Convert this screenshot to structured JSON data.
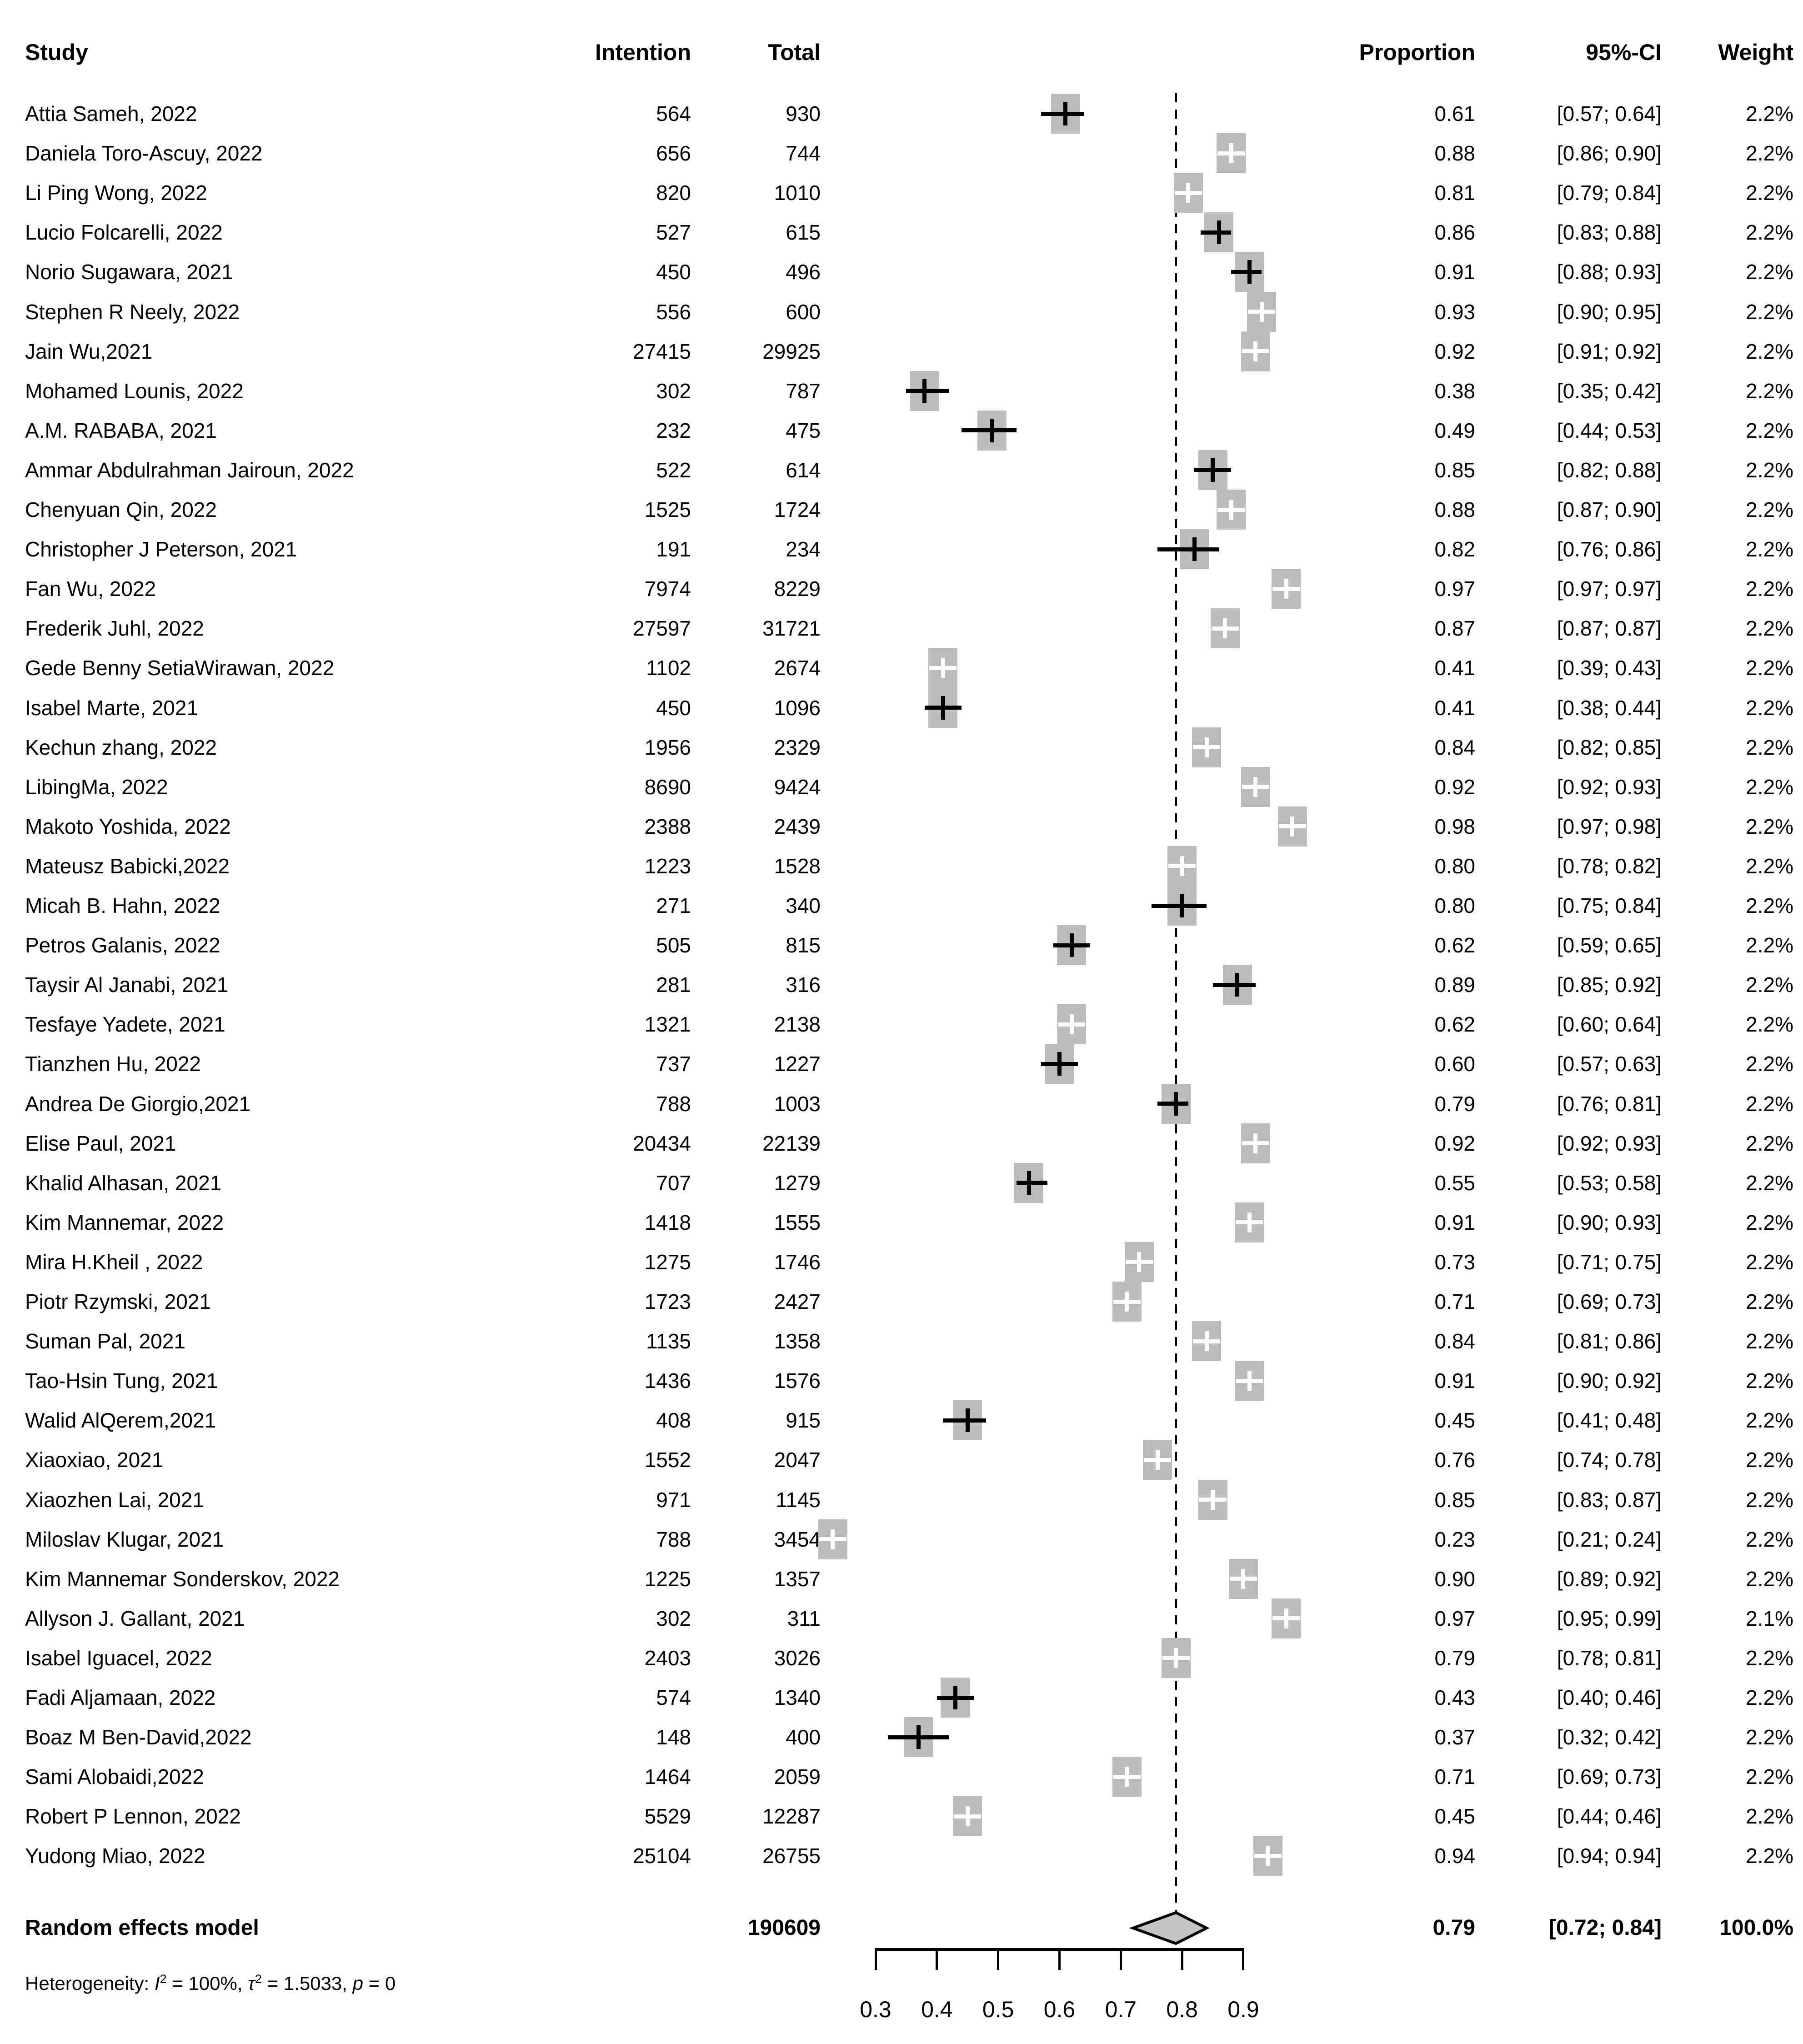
{
  "header": {
    "study": "Study",
    "intention": "Intention",
    "total": "Total",
    "proportion": "Proportion",
    "ci": "95%-CI",
    "weight": "Weight"
  },
  "colors": {
    "square": "#bcbcbc",
    "diamond_fill": "#c4c4c4",
    "diamond_border": "#000000",
    "text": "#000000"
  },
  "chart_data": {
    "type": "forest",
    "xlabel": "",
    "axis": {
      "ticks": [
        "0.3",
        "0.4",
        "0.5",
        "0.6",
        "0.7",
        "0.8",
        "0.9"
      ],
      "tick_values": [
        0.3,
        0.4,
        0.5,
        0.6,
        0.7,
        0.8,
        0.9
      ],
      "xmin": 0.3,
      "xmax": 0.9,
      "dashed_line_x": 0.79,
      "grid": false
    },
    "studies": [
      {
        "name": "Attia Sameh, 2022",
        "intention": "564",
        "total": "930",
        "prop": 0.61,
        "lo": 0.57,
        "hi": 0.64,
        "prop_label": "0.61",
        "ci_label": "[0.57; 0.64]",
        "weight": "2.2%",
        "marker": "black"
      },
      {
        "name": "Daniela Toro-Ascuy, 2022",
        "intention": "656",
        "total": "744",
        "prop": 0.88,
        "lo": 0.86,
        "hi": 0.9,
        "prop_label": "0.88",
        "ci_label": "[0.86; 0.90]",
        "weight": "2.2%",
        "marker": "white"
      },
      {
        "name": "Li Ping Wong, 2022",
        "intention": "820",
        "total": "1010",
        "prop": 0.81,
        "lo": 0.79,
        "hi": 0.84,
        "prop_label": "0.81",
        "ci_label": "[0.79; 0.84]",
        "weight": "2.2%",
        "marker": "white"
      },
      {
        "name": "Lucio Folcarelli, 2022",
        "intention": "527",
        "total": "615",
        "prop": 0.86,
        "lo": 0.83,
        "hi": 0.88,
        "prop_label": "0.86",
        "ci_label": "[0.83; 0.88]",
        "weight": "2.2%",
        "marker": "black"
      },
      {
        "name": "Norio Sugawara, 2021",
        "intention": "450",
        "total": "496",
        "prop": 0.91,
        "lo": 0.88,
        "hi": 0.93,
        "prop_label": "0.91",
        "ci_label": "[0.88; 0.93]",
        "weight": "2.2%",
        "marker": "black"
      },
      {
        "name": "Stephen R Neely, 2022",
        "intention": "556",
        "total": "600",
        "prop": 0.93,
        "lo": 0.9,
        "hi": 0.95,
        "prop_label": "0.93",
        "ci_label": "[0.90; 0.95]",
        "weight": "2.2%",
        "marker": "white"
      },
      {
        "name": "Jain Wu,2021",
        "intention": "27415",
        "total": "29925",
        "prop": 0.92,
        "lo": 0.91,
        "hi": 0.92,
        "prop_label": "0.92",
        "ci_label": "[0.91; 0.92]",
        "weight": "2.2%",
        "marker": "white"
      },
      {
        "name": "Mohamed Lounis, 2022",
        "intention": "302",
        "total": "787",
        "prop": 0.38,
        "lo": 0.35,
        "hi": 0.42,
        "prop_label": "0.38",
        "ci_label": "[0.35; 0.42]",
        "weight": "2.2%",
        "marker": "black"
      },
      {
        "name": "A.M. RABABA, 2021",
        "intention": "232",
        "total": "475",
        "prop": 0.49,
        "lo": 0.44,
        "hi": 0.53,
        "prop_label": "0.49",
        "ci_label": "[0.44; 0.53]",
        "weight": "2.2%",
        "marker": "black"
      },
      {
        "name": "Ammar Abdulrahman Jairoun, 2022",
        "intention": "522",
        "total": "614",
        "prop": 0.85,
        "lo": 0.82,
        "hi": 0.88,
        "prop_label": "0.85",
        "ci_label": "[0.82; 0.88]",
        "weight": "2.2%",
        "marker": "black"
      },
      {
        "name": "Chenyuan Qin, 2022",
        "intention": "1525",
        "total": "1724",
        "prop": 0.88,
        "lo": 0.87,
        "hi": 0.9,
        "prop_label": "0.88",
        "ci_label": "[0.87; 0.90]",
        "weight": "2.2%",
        "marker": "white"
      },
      {
        "name": "Christopher J Peterson, 2021",
        "intention": "191",
        "total": "234",
        "prop": 0.82,
        "lo": 0.76,
        "hi": 0.86,
        "prop_label": "0.82",
        "ci_label": "[0.76; 0.86]",
        "weight": "2.2%",
        "marker": "black"
      },
      {
        "name": "Fan Wu, 2022",
        "intention": "7974",
        "total": "8229",
        "prop": 0.97,
        "lo": 0.97,
        "hi": 0.97,
        "prop_label": "0.97",
        "ci_label": "[0.97; 0.97]",
        "weight": "2.2%",
        "marker": "white"
      },
      {
        "name": "Frederik Juhl, 2022",
        "intention": "27597",
        "total": "31721",
        "prop": 0.87,
        "lo": 0.87,
        "hi": 0.87,
        "prop_label": "0.87",
        "ci_label": "[0.87; 0.87]",
        "weight": "2.2%",
        "marker": "white"
      },
      {
        "name": "Gede Benny SetiaWirawan, 2022",
        "intention": "1102",
        "total": "2674",
        "prop": 0.41,
        "lo": 0.39,
        "hi": 0.43,
        "prop_label": "0.41",
        "ci_label": "[0.39; 0.43]",
        "weight": "2.2%",
        "marker": "white"
      },
      {
        "name": "Isabel Marte, 2021",
        "intention": "450",
        "total": "1096",
        "prop": 0.41,
        "lo": 0.38,
        "hi": 0.44,
        "prop_label": "0.41",
        "ci_label": "[0.38; 0.44]",
        "weight": "2.2%",
        "marker": "black"
      },
      {
        "name": "Kechun zhang, 2022",
        "intention": "1956",
        "total": "2329",
        "prop": 0.84,
        "lo": 0.82,
        "hi": 0.85,
        "prop_label": "0.84",
        "ci_label": "[0.82; 0.85]",
        "weight": "2.2%",
        "marker": "white"
      },
      {
        "name": "LibingMa, 2022",
        "intention": "8690",
        "total": "9424",
        "prop": 0.92,
        "lo": 0.92,
        "hi": 0.93,
        "prop_label": "0.92",
        "ci_label": "[0.92; 0.93]",
        "weight": "2.2%",
        "marker": "white"
      },
      {
        "name": "Makoto Yoshida, 2022",
        "intention": "2388",
        "total": "2439",
        "prop": 0.98,
        "lo": 0.97,
        "hi": 0.98,
        "prop_label": "0.98",
        "ci_label": "[0.97; 0.98]",
        "weight": "2.2%",
        "marker": "white"
      },
      {
        "name": "Mateusz Babicki,2022",
        "intention": "1223",
        "total": "1528",
        "prop": 0.8,
        "lo": 0.78,
        "hi": 0.82,
        "prop_label": "0.80",
        "ci_label": "[0.78; 0.82]",
        "weight": "2.2%",
        "marker": "white"
      },
      {
        "name": "Micah B. Hahn, 2022",
        "intention": "271",
        "total": "340",
        "prop": 0.8,
        "lo": 0.75,
        "hi": 0.84,
        "prop_label": "0.80",
        "ci_label": "[0.75; 0.84]",
        "weight": "2.2%",
        "marker": "black"
      },
      {
        "name": "Petros Galanis, 2022",
        "intention": "505",
        "total": "815",
        "prop": 0.62,
        "lo": 0.59,
        "hi": 0.65,
        "prop_label": "0.62",
        "ci_label": "[0.59; 0.65]",
        "weight": "2.2%",
        "marker": "black"
      },
      {
        "name": "Taysir Al Janabi, 2021",
        "intention": "281",
        "total": "316",
        "prop": 0.89,
        "lo": 0.85,
        "hi": 0.92,
        "prop_label": "0.89",
        "ci_label": "[0.85; 0.92]",
        "weight": "2.2%",
        "marker": "black"
      },
      {
        "name": "Tesfaye Yadete, 2021",
        "intention": "1321",
        "total": "2138",
        "prop": 0.62,
        "lo": 0.6,
        "hi": 0.64,
        "prop_label": "0.62",
        "ci_label": "[0.60; 0.64]",
        "weight": "2.2%",
        "marker": "white"
      },
      {
        "name": "Tianzhen Hu, 2022",
        "intention": "737",
        "total": "1227",
        "prop": 0.6,
        "lo": 0.57,
        "hi": 0.63,
        "prop_label": "0.60",
        "ci_label": "[0.57; 0.63]",
        "weight": "2.2%",
        "marker": "black"
      },
      {
        "name": "Andrea De Giorgio,2021",
        "intention": "788",
        "total": "1003",
        "prop": 0.79,
        "lo": 0.76,
        "hi": 0.81,
        "prop_label": "0.79",
        "ci_label": "[0.76; 0.81]",
        "weight": "2.2%",
        "marker": "black"
      },
      {
        "name": "Elise Paul, 2021",
        "intention": "20434",
        "total": "22139",
        "prop": 0.92,
        "lo": 0.92,
        "hi": 0.93,
        "prop_label": "0.92",
        "ci_label": "[0.92; 0.93]",
        "weight": "2.2%",
        "marker": "white"
      },
      {
        "name": "Khalid Alhasan, 2021",
        "intention": "707",
        "total": "1279",
        "prop": 0.55,
        "lo": 0.53,
        "hi": 0.58,
        "prop_label": "0.55",
        "ci_label": "[0.53; 0.58]",
        "weight": "2.2%",
        "marker": "black"
      },
      {
        "name": "Kim Mannemar, 2022",
        "intention": "1418",
        "total": "1555",
        "prop": 0.91,
        "lo": 0.9,
        "hi": 0.93,
        "prop_label": "0.91",
        "ci_label": "[0.90; 0.93]",
        "weight": "2.2%",
        "marker": "white"
      },
      {
        "name": "Mira H.Kheil , 2022",
        "intention": "1275",
        "total": "1746",
        "prop": 0.73,
        "lo": 0.71,
        "hi": 0.75,
        "prop_label": "0.73",
        "ci_label": "[0.71; 0.75]",
        "weight": "2.2%",
        "marker": "white"
      },
      {
        "name": "Piotr Rzymski, 2021",
        "intention": "1723",
        "total": "2427",
        "prop": 0.71,
        "lo": 0.69,
        "hi": 0.73,
        "prop_label": "0.71",
        "ci_label": "[0.69; 0.73]",
        "weight": "2.2%",
        "marker": "white"
      },
      {
        "name": "Suman Pal, 2021",
        "intention": "1135",
        "total": "1358",
        "prop": 0.84,
        "lo": 0.81,
        "hi": 0.86,
        "prop_label": "0.84",
        "ci_label": "[0.81; 0.86]",
        "weight": "2.2%",
        "marker": "white"
      },
      {
        "name": "Tao-Hsin Tung, 2021",
        "intention": "1436",
        "total": "1576",
        "prop": 0.91,
        "lo": 0.9,
        "hi": 0.92,
        "prop_label": "0.91",
        "ci_label": "[0.90; 0.92]",
        "weight": "2.2%",
        "marker": "white"
      },
      {
        "name": "Walid AlQerem,2021",
        "intention": "408",
        "total": "915",
        "prop": 0.45,
        "lo": 0.41,
        "hi": 0.48,
        "prop_label": "0.45",
        "ci_label": "[0.41; 0.48]",
        "weight": "2.2%",
        "marker": "black"
      },
      {
        "name": "Xiaoxiao, 2021",
        "intention": "1552",
        "total": "2047",
        "prop": 0.76,
        "lo": 0.74,
        "hi": 0.78,
        "prop_label": "0.76",
        "ci_label": "[0.74; 0.78]",
        "weight": "2.2%",
        "marker": "white"
      },
      {
        "name": "Xiaozhen Lai, 2021",
        "intention": "971",
        "total": "1145",
        "prop": 0.85,
        "lo": 0.83,
        "hi": 0.87,
        "prop_label": "0.85",
        "ci_label": "[0.83; 0.87]",
        "weight": "2.2%",
        "marker": "white"
      },
      {
        "name": "Miloslav Klugar, 2021",
        "intention": "788",
        "total": "3454",
        "prop": 0.23,
        "lo": 0.21,
        "hi": 0.24,
        "prop_label": "0.23",
        "ci_label": "[0.21; 0.24]",
        "weight": "2.2%",
        "marker": "white"
      },
      {
        "name": "Kim Mannemar Sonderskov, 2022",
        "intention": "1225",
        "total": "1357",
        "prop": 0.9,
        "lo": 0.89,
        "hi": 0.92,
        "prop_label": "0.90",
        "ci_label": "[0.89; 0.92]",
        "weight": "2.2%",
        "marker": "white"
      },
      {
        "name": "Allyson J. Gallant, 2021",
        "intention": "302",
        "total": "311",
        "prop": 0.97,
        "lo": 0.95,
        "hi": 0.99,
        "prop_label": "0.97",
        "ci_label": "[0.95; 0.99]",
        "weight": "2.1%",
        "marker": "white"
      },
      {
        "name": "Isabel Iguacel, 2022",
        "intention": "2403",
        "total": "3026",
        "prop": 0.79,
        "lo": 0.78,
        "hi": 0.81,
        "prop_label": "0.79",
        "ci_label": "[0.78; 0.81]",
        "weight": "2.2%",
        "marker": "white"
      },
      {
        "name": "Fadi Aljamaan, 2022",
        "intention": "574",
        "total": "1340",
        "prop": 0.43,
        "lo": 0.4,
        "hi": 0.46,
        "prop_label": "0.43",
        "ci_label": "[0.40; 0.46]",
        "weight": "2.2%",
        "marker": "black"
      },
      {
        "name": "Boaz M Ben-David,2022",
        "intention": "148",
        "total": "400",
        "prop": 0.37,
        "lo": 0.32,
        "hi": 0.42,
        "prop_label": "0.37",
        "ci_label": "[0.32; 0.42]",
        "weight": "2.2%",
        "marker": "black"
      },
      {
        "name": "Sami Alobaidi,2022",
        "intention": "1464",
        "total": "2059",
        "prop": 0.71,
        "lo": 0.69,
        "hi": 0.73,
        "prop_label": "0.71",
        "ci_label": "[0.69; 0.73]",
        "weight": "2.2%",
        "marker": "white"
      },
      {
        "name": "Robert P Lennon, 2022",
        "intention": "5529",
        "total": "12287",
        "prop": 0.45,
        "lo": 0.44,
        "hi": 0.46,
        "prop_label": "0.45",
        "ci_label": "[0.44; 0.46]",
        "weight": "2.2%",
        "marker": "white"
      },
      {
        "name": "Yudong Miao, 2022",
        "intention": "25104",
        "total": "26755",
        "prop": 0.94,
        "lo": 0.94,
        "hi": 0.94,
        "prop_label": "0.94",
        "ci_label": "[0.94; 0.94]",
        "weight": "2.2%",
        "marker": "white"
      }
    ],
    "summary": {
      "label": "Random effects model",
      "total": "190609",
      "prop": 0.79,
      "lo": 0.72,
      "hi": 0.84,
      "prop_label": "0.79",
      "ci_label": "[0.72; 0.84]",
      "weight": "100.0%"
    },
    "heterogeneity": {
      "prefix": "Heterogeneity: ",
      "i_sym": "I",
      "i_sup": "2",
      "i_rest": " = 100%, ",
      "tau_sym": "τ",
      "tau_sup": "2",
      "tau_rest": " = 1.5033, ",
      "p_sym": "p",
      "p_rest": " = 0"
    }
  }
}
